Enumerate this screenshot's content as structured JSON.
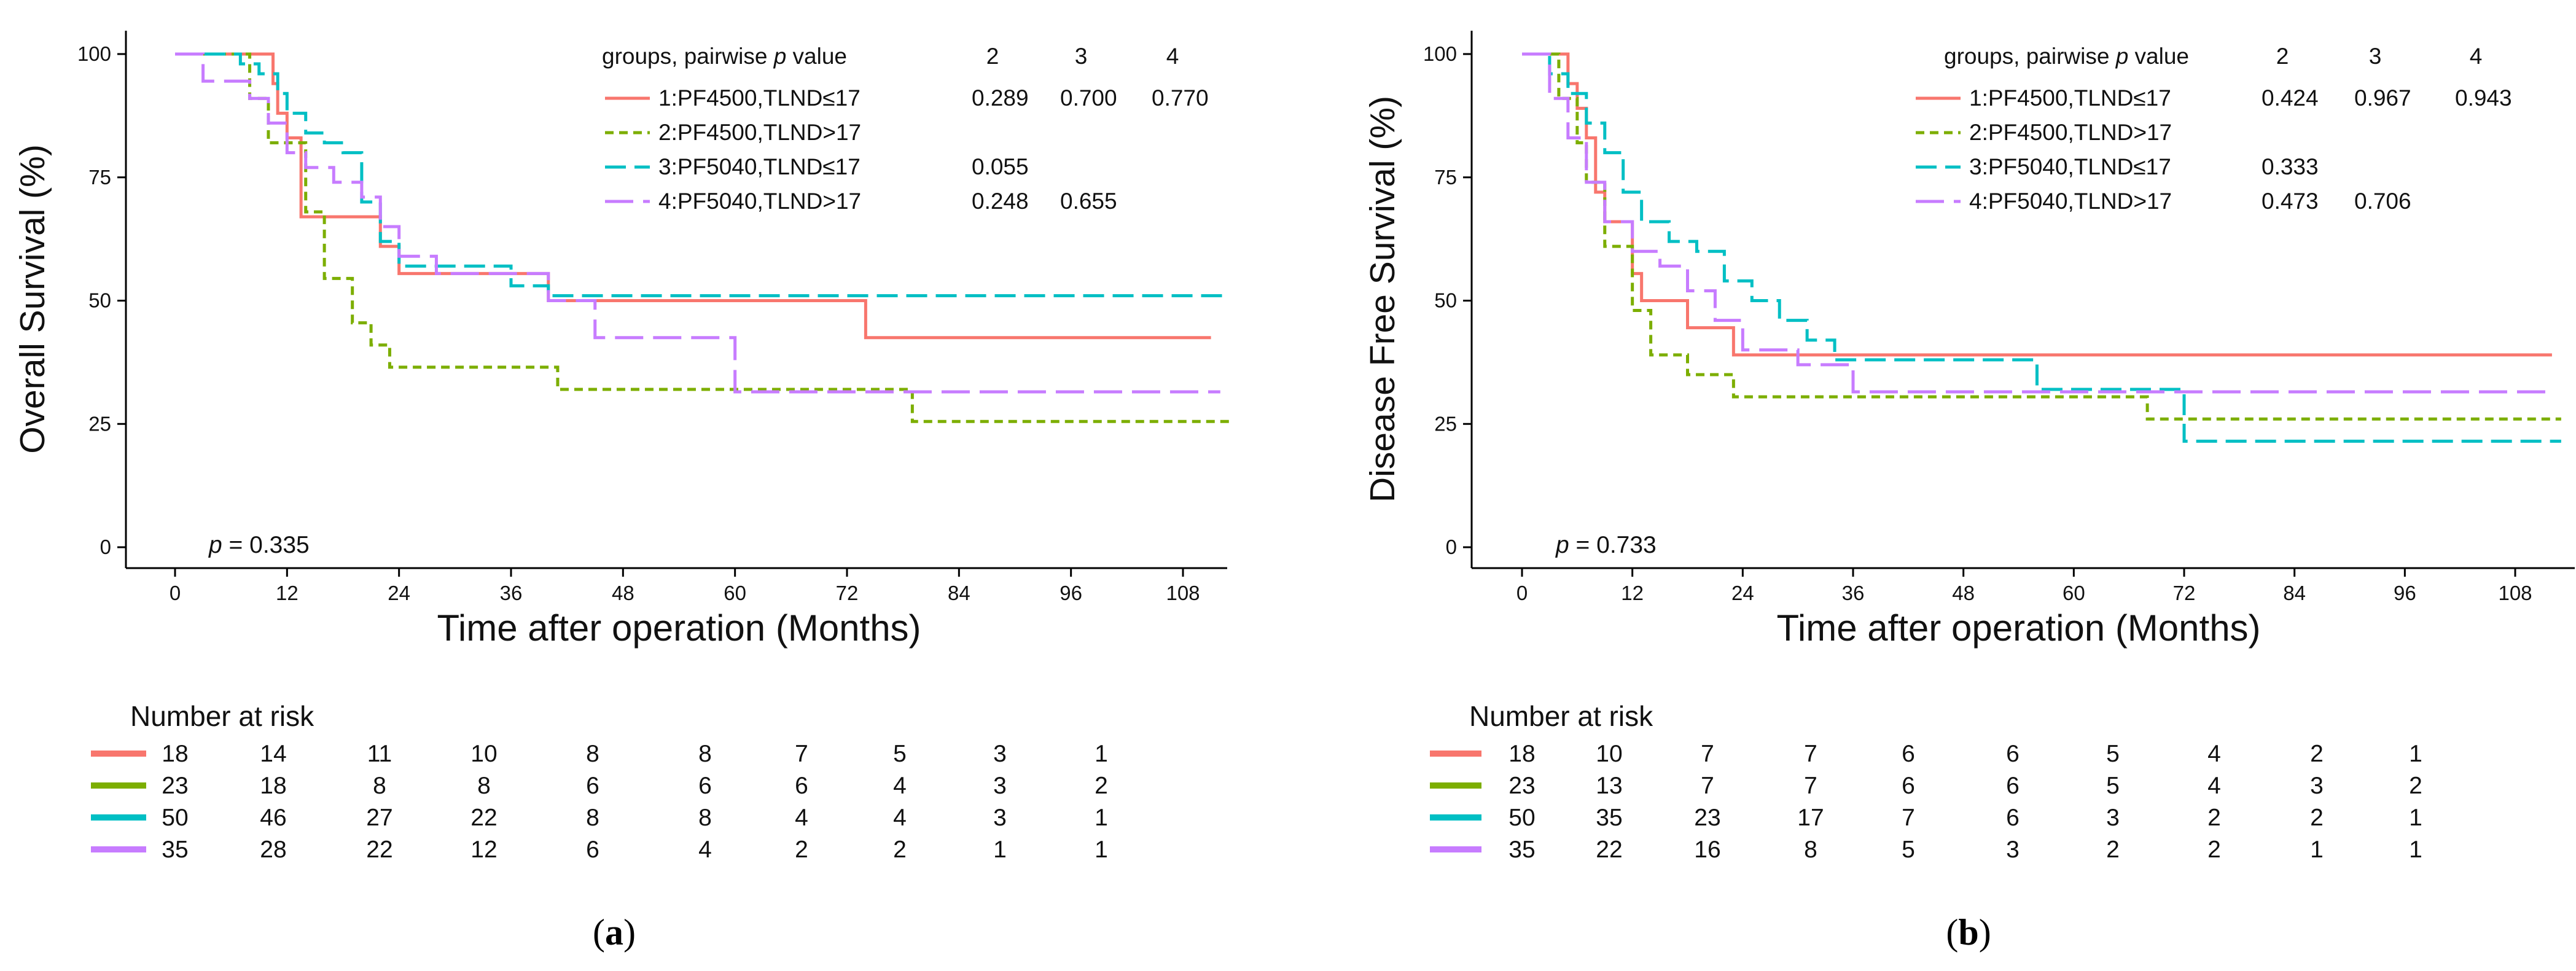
{
  "colors": {
    "group1": "#F8766D",
    "group2": "#7CAE00",
    "group3": "#00BFC4",
    "group4": "#C77CFF",
    "axis": "#000000"
  },
  "chart_data": [
    {
      "type": "line",
      "step": true,
      "panel": "a",
      "caption_letter": "a",
      "caption_open": "(",
      "caption_close": ")",
      "title": "",
      "ylabel": "Overall Survival (%)",
      "xlabel": "Time after operation (Months)",
      "xlim": [
        0,
        114
      ],
      "ylim": [
        0,
        100
      ],
      "xticks": [
        "0",
        "12",
        "24",
        "36",
        "48",
        "60",
        "72",
        "84",
        "96",
        "108"
      ],
      "yticks": [
        "0",
        "25",
        "50",
        "75",
        "100"
      ],
      "pvalue_label": "p",
      "pvalue_text": "= 0.335",
      "legend_header": "groups, pairwise",
      "legend_header_p": "p",
      "legend_header_value": "value",
      "pairwise_columns": [
        "2",
        "3",
        "4"
      ],
      "series": [
        {
          "name": "1:PF4500,TLND≤17",
          "dash": "solid",
          "pairwise": [
            "0.289",
            "0.700",
            "0.770"
          ],
          "x": [
            0,
            10.5,
            11,
            12,
            13.5,
            22,
            24,
            40,
            74,
            111
          ],
          "y": [
            100,
            94,
            88,
            83,
            67,
            61,
            55.5,
            50,
            42.5,
            42.5
          ]
        },
        {
          "name": "2:PF4500,TLND>17",
          "dash": "dotted",
          "pairwise": [
            "",
            "",
            ""
          ],
          "x": [
            0,
            8,
            10,
            14,
            16,
            19,
            21,
            23,
            41,
            79,
            113
          ],
          "y": [
            100,
            91,
            82,
            68,
            54.5,
            45.5,
            41,
            36.5,
            32,
            25.5,
            25.5
          ]
        },
        {
          "name": "3:PF5040,TLND≤17",
          "dash": "dashed",
          "pairwise": [
            "0.055",
            "",
            ""
          ],
          "x": [
            0,
            7,
            9,
            11,
            12,
            14,
            16,
            18,
            20,
            22,
            24,
            36,
            40,
            113
          ],
          "y": [
            100,
            98,
            96,
            92,
            88,
            84,
            82,
            80,
            70,
            62,
            57,
            53,
            51,
            51
          ]
        },
        {
          "name": "4:PF5040,TLND>17",
          "dash": "longdash",
          "pairwise": [
            "0.248",
            "0.655",
            ""
          ],
          "x": [
            0,
            3,
            8,
            10,
            12,
            14,
            17,
            20,
            22,
            24,
            28,
            40,
            45,
            60,
            112
          ],
          "y": [
            100,
            94.5,
            91,
            86,
            80,
            77,
            74,
            71,
            65,
            59,
            55.5,
            50,
            42.5,
            31.5,
            31.5
          ]
        }
      ],
      "risk_table": {
        "title": "Number at risk",
        "rows": [
          [
            "18",
            "14",
            "11",
            "10",
            "8",
            "8",
            "7",
            "5",
            "3",
            "1"
          ],
          [
            "23",
            "18",
            "8",
            "8",
            "6",
            "6",
            "6",
            "4",
            "3",
            "2"
          ],
          [
            "50",
            "46",
            "27",
            "22",
            "8",
            "8",
            "4",
            "4",
            "3",
            "1"
          ],
          [
            "35",
            "28",
            "22",
            "12",
            "6",
            "4",
            "2",
            "2",
            "1",
            "1"
          ]
        ]
      }
    },
    {
      "type": "line",
      "step": true,
      "panel": "b",
      "caption_letter": "b",
      "caption_open": "(",
      "caption_close": ")",
      "title": "",
      "ylabel": "Disease Free Survival (%)",
      "xlabel": "Time after operation (Months)",
      "xlim": [
        0,
        114
      ],
      "ylim": [
        0,
        100
      ],
      "xticks": [
        "0",
        "12",
        "24",
        "36",
        "48",
        "60",
        "72",
        "84",
        "96",
        "108"
      ],
      "yticks": [
        "0",
        "25",
        "50",
        "75",
        "100"
      ],
      "pvalue_label": "p",
      "pvalue_text": "= 0.733",
      "legend_header": "groups, pairwise",
      "legend_header_p": "p",
      "legend_header_value": "value",
      "pairwise_columns": [
        "2",
        "3",
        "4"
      ],
      "series": [
        {
          "name": "1:PF4500,TLND≤17",
          "dash": "solid",
          "pairwise": [
            "0.424",
            "0.967",
            "0.943"
          ],
          "x": [
            0,
            5,
            6,
            7,
            8,
            9,
            12,
            13,
            18,
            23,
            24,
            112
          ],
          "y": [
            100,
            94,
            89,
            83,
            72,
            66,
            55.5,
            50,
            44.5,
            39,
            39,
            39
          ]
        },
        {
          "name": "2:PF4500,TLND>17",
          "dash": "dotted",
          "pairwise": [
            "",
            "",
            ""
          ],
          "x": [
            0,
            4,
            6,
            7,
            9,
            12,
            14,
            18,
            23,
            68,
            70,
            113
          ],
          "y": [
            100,
            91,
            82,
            74,
            61,
            48,
            39,
            35,
            30.5,
            26,
            26,
            26
          ]
        },
        {
          "name": "3:PF5040,TLND≤17",
          "dash": "dashed",
          "pairwise": [
            "0.333",
            "",
            ""
          ],
          "x": [
            0,
            3,
            5,
            7,
            9,
            11,
            13,
            16,
            19,
            22,
            25,
            28,
            31,
            34,
            56,
            72,
            113
          ],
          "y": [
            100,
            96,
            92,
            86,
            80,
            72,
            66,
            62,
            60,
            54,
            50,
            46,
            42,
            38,
            32,
            21.5,
            21.5
          ]
        },
        {
          "name": "4:PF5040,TLND>17",
          "dash": "longdash",
          "pairwise": [
            "0.473",
            "0.706",
            ""
          ],
          "x": [
            0,
            3,
            5,
            7,
            9,
            12,
            15,
            18,
            21,
            24,
            30,
            36,
            112
          ],
          "y": [
            100,
            91,
            83,
            74,
            66,
            60,
            57,
            52,
            46,
            40,
            37,
            31.5,
            31.5
          ]
        }
      ],
      "risk_table": {
        "title": "Number at risk",
        "rows": [
          [
            "18",
            "10",
            "7",
            "7",
            "6",
            "6",
            "5",
            "4",
            "2",
            "1"
          ],
          [
            "23",
            "13",
            "7",
            "7",
            "6",
            "6",
            "5",
            "4",
            "3",
            "2"
          ],
          [
            "50",
            "35",
            "23",
            "17",
            "7",
            "6",
            "3",
            "2",
            "2",
            "1"
          ],
          [
            "35",
            "22",
            "16",
            "8",
            "5",
            "3",
            "2",
            "2",
            "1",
            "1"
          ]
        ]
      }
    }
  ]
}
